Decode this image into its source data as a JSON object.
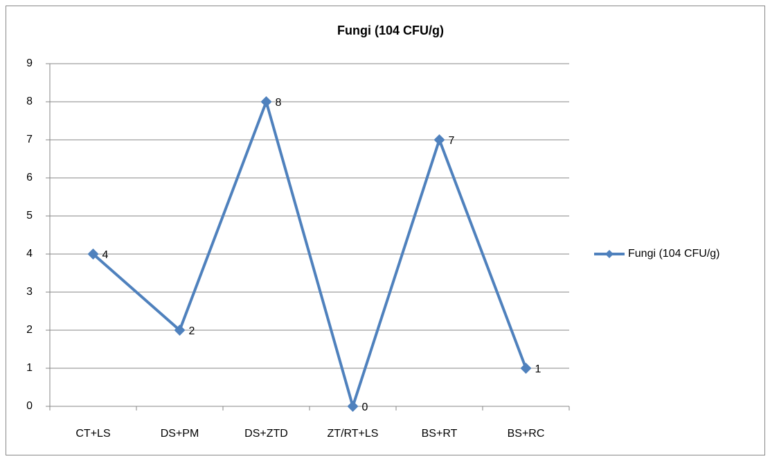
{
  "chart_data": {
    "type": "line",
    "title": "Fungi (104 CFU/g)",
    "categories": [
      "CT+LS",
      "DS+PM",
      "DS+ZTD",
      "ZT/RT+LS",
      "BS+RT",
      "BS+RC"
    ],
    "series": [
      {
        "name": "Fungi (104 CFU/g)",
        "color": "#4f81bd",
        "values": [
          4,
          2,
          8,
          0,
          7,
          1
        ]
      }
    ],
    "ylim": [
      0,
      9
    ],
    "yticks": [
      0,
      1,
      2,
      3,
      4,
      5,
      6,
      7,
      8,
      9
    ],
    "grid": true,
    "legend": "right",
    "data_labels": true
  }
}
